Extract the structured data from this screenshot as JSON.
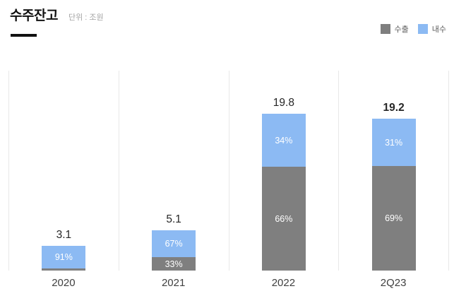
{
  "header": {
    "title": "수주잔고",
    "unit": "단위 : 조원"
  },
  "chart_data": {
    "type": "bar",
    "stacked": true,
    "title": "수주잔고",
    "unit_label": "단위 : 조원",
    "xlabel": "",
    "ylabel": "",
    "value_axis_visible": false,
    "grid": "vertical-column-separators",
    "gridline_color": "#e8e8e8",
    "legend_position": "top-right",
    "categories": [
      "2020",
      "2021",
      "2022",
      "2Q23"
    ],
    "totals": [
      3.1,
      5.1,
      19.8,
      19.2
    ],
    "total_labels": [
      "3.1",
      "5.1",
      "19.8",
      "19.2"
    ],
    "emphasized_total_index": 3,
    "series": [
      {
        "name": "수출",
        "position": "bottom",
        "color": "#7f7f7f",
        "pct_values": [
          9,
          33,
          66,
          69
        ],
        "pct_labels": [
          "",
          "33%",
          "66%",
          "69%"
        ],
        "values_trillion_won": [
          0.28,
          1.68,
          13.07,
          13.25
        ]
      },
      {
        "name": "내수",
        "position": "top",
        "color": "#8cbaf3",
        "pct_values": [
          91,
          67,
          34,
          31
        ],
        "pct_labels": [
          "91%",
          "67%",
          "34%",
          "31%"
        ],
        "values_trillion_won": [
          2.82,
          3.42,
          6.73,
          5.95
        ]
      }
    ]
  }
}
